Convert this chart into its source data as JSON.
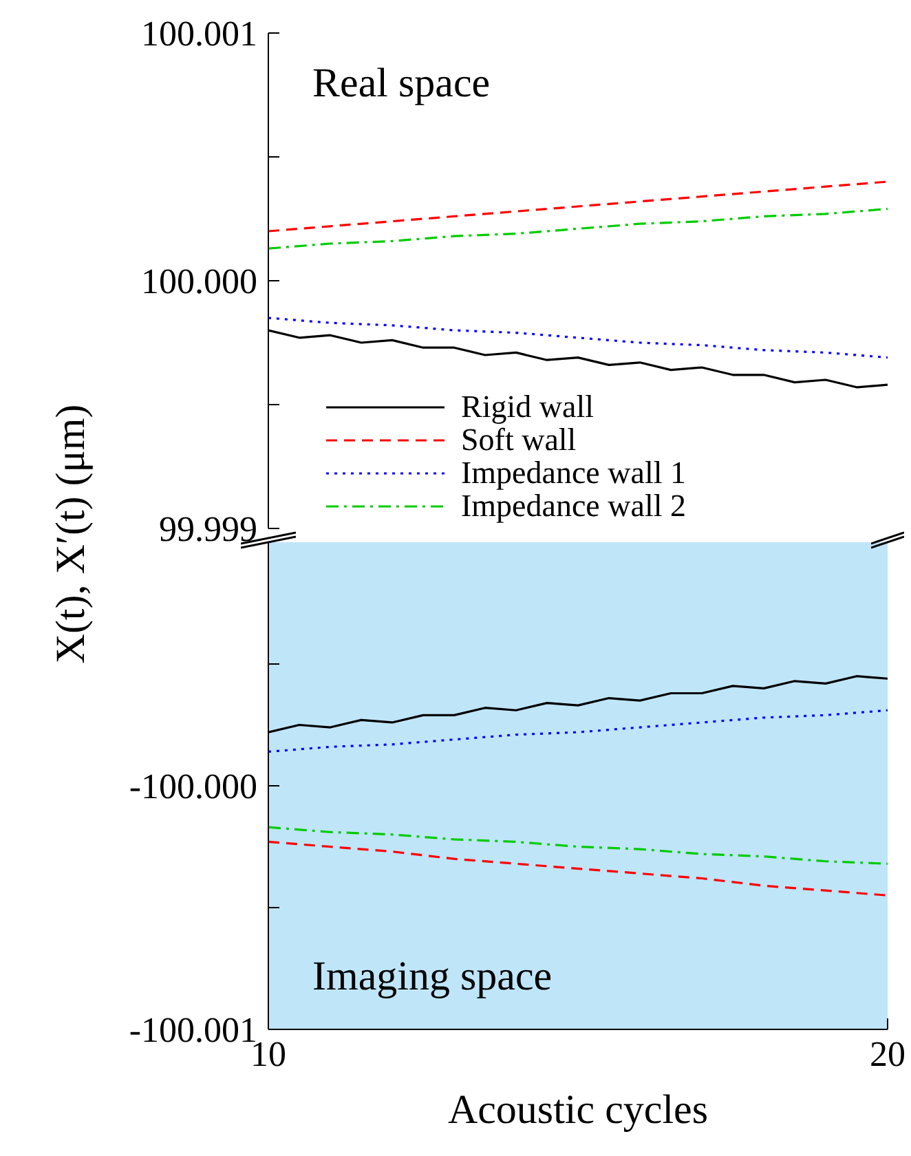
{
  "chart_data": [
    {
      "type": "line",
      "ylabel": "X(t), X′(t) (μm)",
      "annotations": [
        "Real space"
      ],
      "x": [
        10,
        11,
        12,
        13,
        14,
        15,
        16,
        17,
        18,
        19,
        20
      ],
      "xlim": [
        10,
        20
      ],
      "ylim": [
        99.999,
        100.001
      ],
      "yticks": [
        99.999,
        {
          "value": 99.9995,
          "label": null
        },
        {
          "value": 100,
          "label": "100.000"
        },
        {
          "value": 100.0005,
          "label": null
        },
        100.001
      ],
      "tick_labels": "y",
      "legend": "bottom left",
      "marker": "none",
      "series": [
        {
          "name": "Rigid wall",
          "color": "#000000",
          "line_style": "solid",
          "x": [
            10,
            10.5,
            11,
            11.5,
            12,
            12.5,
            13,
            13.5,
            14,
            14.5,
            15,
            15.5,
            16,
            16.5,
            17,
            17.5,
            18,
            18.5,
            19,
            19.5,
            20
          ],
          "values": [
            99.9998,
            99.99977,
            99.99978,
            99.99975,
            99.99976,
            99.99973,
            99.99973,
            99.9997,
            99.99971,
            99.99968,
            99.99969,
            99.99966,
            99.99967,
            99.99964,
            99.99965,
            99.99962,
            99.99962,
            99.99959,
            99.9996,
            99.99957,
            99.99958
          ]
        },
        {
          "name": "Soft wall",
          "color": "#ff0000",
          "line_style": "dashed",
          "values": [
            100.0002,
            100.00022,
            100.00024,
            100.00026,
            100.00028,
            100.0003,
            100.00032,
            100.00034,
            100.00036,
            100.00038,
            100.0004
          ]
        },
        {
          "name": "Impedance wall 1",
          "color": "#0000ff",
          "line_style": "dotted",
          "values": [
            99.99985,
            99.99983,
            99.99982,
            99.9998,
            99.99979,
            99.99977,
            99.99975,
            99.99974,
            99.99972,
            99.99971,
            99.99969
          ]
        },
        {
          "name": "Impedance wall 2",
          "color": "#00cc00",
          "line_style": "dashdot",
          "values": [
            100.00013,
            100.00015,
            100.00016,
            100.00018,
            100.00019,
            100.00021,
            100.00023,
            100.00024,
            100.00026,
            100.00027,
            100.00029
          ]
        }
      ]
    },
    {
      "type": "line",
      "xlabel": "Acoustic cycles",
      "annotations": [
        "Imaging space"
      ],
      "x": [
        10,
        11,
        12,
        13,
        14,
        15,
        16,
        17,
        18,
        19,
        20
      ],
      "xlim": [
        10,
        20
      ],
      "xticks": [
        10,
        20
      ],
      "ylim": [
        -100.001,
        -99.999
      ],
      "yticks": [
        -100.001,
        {
          "value": -100.0005,
          "label": null
        },
        {
          "value": -100,
          "label": "-100.000"
        },
        {
          "value": -99.9995,
          "label": null
        }
      ],
      "marker": "none",
      "bands": [
        {
          "axis": "y",
          "from": -100.001,
          "to": -99.999,
          "color": "#bfe5f9"
        }
      ],
      "series": [
        {
          "color": "#000000",
          "line_style": "solid",
          "x": [
            10,
            10.5,
            11,
            11.5,
            12,
            12.5,
            13,
            13.5,
            14,
            14.5,
            15,
            15.5,
            16,
            16.5,
            17,
            17.5,
            18,
            18.5,
            19,
            19.5,
            20
          ],
          "values": [
            -99.99978,
            -99.99975,
            -99.99976,
            -99.99973,
            -99.99974,
            -99.99971,
            -99.99971,
            -99.99968,
            -99.99969,
            -99.99966,
            -99.99967,
            -99.99964,
            -99.99965,
            -99.99962,
            -99.99962,
            -99.99959,
            -99.9996,
            -99.99957,
            -99.99958,
            -99.99955,
            -99.99956
          ]
        },
        {
          "color": "#ff0000",
          "line_style": "dashed",
          "values": [
            -100.00023,
            -100.00025,
            -100.00027,
            -100.0003,
            -100.00032,
            -100.00034,
            -100.00036,
            -100.00038,
            -100.00041,
            -100.00043,
            -100.00045
          ]
        },
        {
          "color": "#0000ff",
          "line_style": "dotted",
          "values": [
            -99.99986,
            -99.99984,
            -99.99983,
            -99.99981,
            -99.99979,
            -99.99978,
            -99.99976,
            -99.99974,
            -99.99972,
            -99.99971,
            -99.99969
          ]
        },
        {
          "color": "#00cc00",
          "line_style": "dashdot",
          "values": [
            -100.00017,
            -100.00019,
            -100.0002,
            -100.00022,
            -100.00023,
            -100.00025,
            -100.00026,
            -100.00028,
            -100.00029,
            -100.00031,
            -100.00032
          ]
        }
      ]
    }
  ]
}
